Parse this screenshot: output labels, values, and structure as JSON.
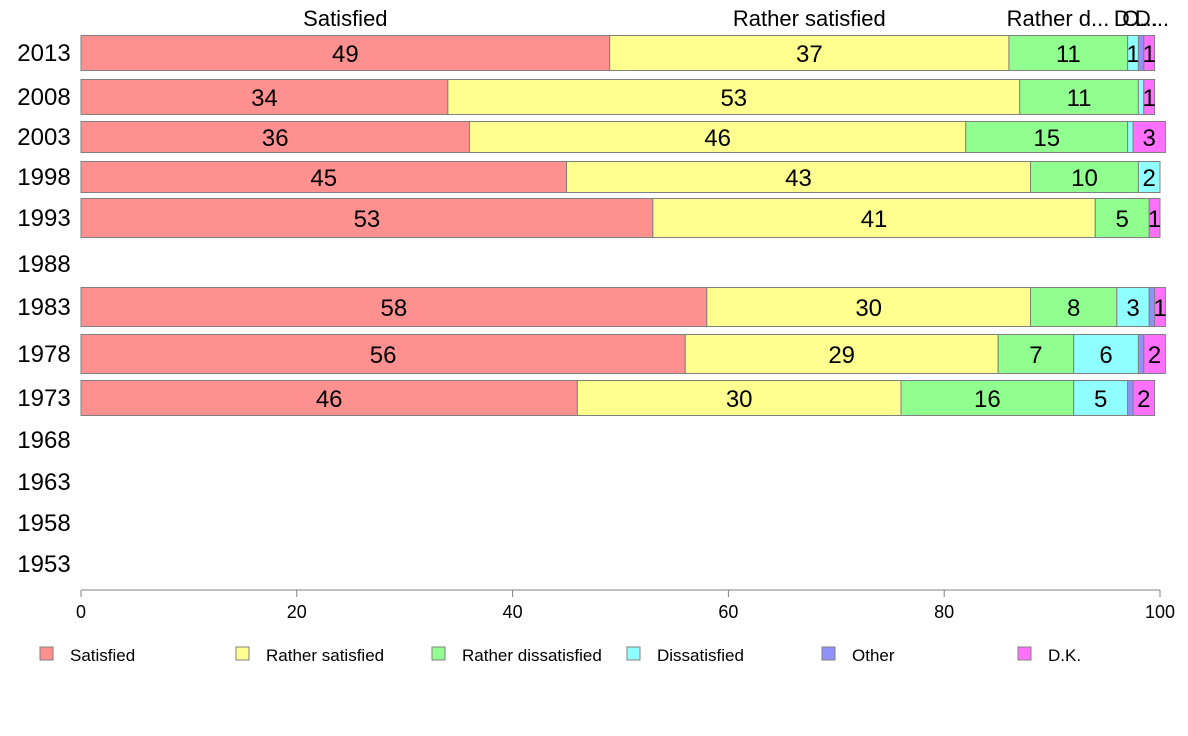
{
  "chart_data": {
    "type": "bar",
    "orientation": "horizontal",
    "stacked": true,
    "categories": [
      "2013",
      "2008",
      "2003",
      "1998",
      "1993",
      "1988",
      "1983",
      "1978",
      "1973",
      "1968",
      "1963",
      "1958",
      "1953"
    ],
    "series": [
      {
        "name": "Satisfied",
        "color": "#ff9090",
        "values": [
          49,
          34,
          36,
          45,
          53,
          null,
          58,
          56,
          46,
          null,
          null,
          null,
          null
        ]
      },
      {
        "name": "Rather satisfied",
        "color": "#ffff90",
        "values": [
          37,
          53,
          46,
          43,
          41,
          null,
          30,
          29,
          30,
          null,
          null,
          null,
          null
        ]
      },
      {
        "name": "Rather dissatisfied",
        "color": "#90ff90",
        "values": [
          11,
          11,
          15,
          10,
          5,
          null,
          8,
          7,
          16,
          null,
          null,
          null,
          null
        ]
      },
      {
        "name": "Dissatisfied",
        "color": "#90ffff",
        "values": [
          1,
          0.5,
          0.5,
          2,
          0,
          null,
          3,
          6,
          5,
          null,
          null,
          null,
          null
        ]
      },
      {
        "name": "Other",
        "color": "#9090ff",
        "values": [
          0.5,
          0,
          0,
          0,
          0,
          null,
          0.5,
          0.5,
          0.5,
          null,
          null,
          null,
          null
        ]
      },
      {
        "name": "D.K.",
        "color": "#ff70ff",
        "values": [
          1,
          1,
          3,
          0,
          1,
          null,
          1,
          2,
          2,
          null,
          null,
          null,
          null
        ]
      }
    ],
    "top_labels": [
      "Satisfied",
      "Rather satisfied",
      "Rather d...",
      "D...",
      "O...",
      "D..."
    ],
    "xlim": [
      0,
      100
    ],
    "xticks": [
      0,
      20,
      40,
      60,
      80,
      100
    ],
    "legend_position": "bottom",
    "grid": false
  }
}
